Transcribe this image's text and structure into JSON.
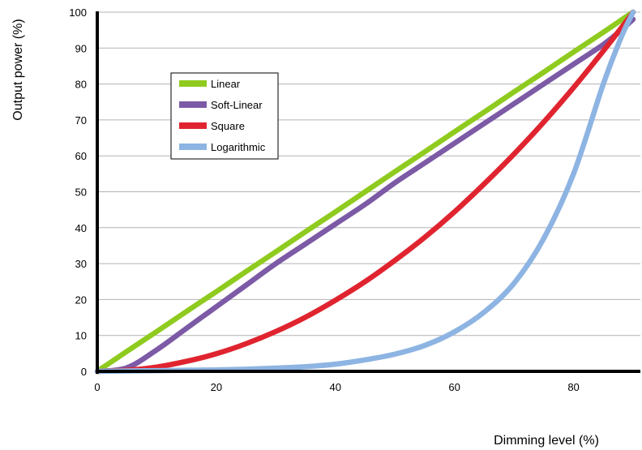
{
  "chart_data": {
    "type": "line",
    "xlabel": "Dimming level (%)",
    "ylabel": "Output power (%)",
    "xlim": [
      0,
      90
    ],
    "ylim": [
      0,
      100
    ],
    "xticks": [
      0,
      20,
      40,
      60,
      80
    ],
    "yticks": [
      0,
      10,
      20,
      30,
      40,
      50,
      60,
      70,
      80,
      90,
      100
    ],
    "grid": "horizontal",
    "legend_position": "upper-left",
    "x": [
      0,
      5,
      10,
      15,
      20,
      25,
      30,
      35,
      40,
      45,
      50,
      55,
      60,
      65,
      70,
      75,
      80,
      85,
      88,
      90
    ],
    "series": [
      {
        "name": "Linear",
        "color": "#8fcb1f",
        "values": [
          0,
          5.6,
          11.1,
          16.7,
          22.2,
          27.8,
          33.3,
          38.9,
          44.4,
          50.0,
          55.6,
          61.1,
          66.7,
          72.2,
          77.8,
          83.3,
          88.9,
          94.4,
          97.8,
          100
        ]
      },
      {
        "name": "Soft-Linear",
        "color": "#7c5aa6",
        "values": [
          0,
          1,
          6,
          12,
          18,
          24,
          30,
          35.5,
          41,
          46.5,
          52.5,
          58,
          63.5,
          69,
          74.5,
          80,
          85.5,
          91,
          95,
          98
        ]
      },
      {
        "name": "Square",
        "color": "#e0242f",
        "values": [
          0,
          0.3,
          1.2,
          2.8,
          4.9,
          7.7,
          11.1,
          15.1,
          19.8,
          25.0,
          30.9,
          37.3,
          44.4,
          52.2,
          60.5,
          69.4,
          79.0,
          89.2,
          95.6,
          100
        ]
      },
      {
        "name": "Logarithmic",
        "color": "#8db4e2",
        "values": [
          0,
          0.1,
          0.2,
          0.3,
          0.4,
          0.6,
          0.9,
          1.3,
          2,
          3.2,
          4.8,
          7.2,
          11,
          16.5,
          24.5,
          37,
          55,
          80,
          93,
          100
        ]
      }
    ]
  }
}
